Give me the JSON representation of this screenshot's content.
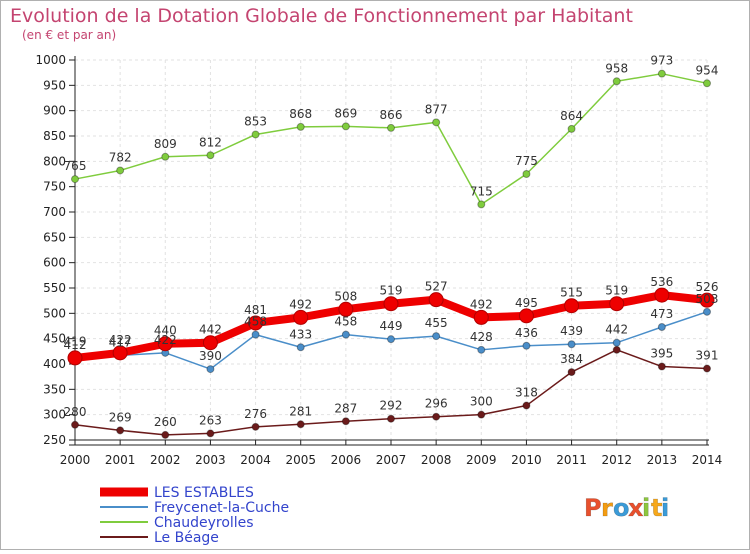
{
  "chart_data": {
    "type": "line",
    "title": "Evolution de la Dotation Globale de Fonctionnement par Habitant",
    "subtitle": "(en € et par an)",
    "x": [
      "2000",
      "2001",
      "2002",
      "2003",
      "2004",
      "2005",
      "2006",
      "2007",
      "2008",
      "2009",
      "2010",
      "2011",
      "2012",
      "2013",
      "2014"
    ],
    "yticks": [
      250,
      300,
      350,
      400,
      450,
      500,
      550,
      600,
      650,
      700,
      750,
      800,
      850,
      900,
      950,
      1000
    ],
    "ylim": [
      250,
      1000
    ],
    "grid": true,
    "legend_position": "bottom-left",
    "series": [
      {
        "name": "LES ESTABLES",
        "color": "#ee0000",
        "values": [
          412,
          422,
          440,
          442,
          481,
          492,
          508,
          519,
          527,
          492,
          495,
          515,
          519,
          536,
          526
        ],
        "labels": [
          "412",
          "422",
          "440",
          "442",
          "481",
          "492",
          "508",
          "519",
          "527",
          "492",
          "495",
          "515",
          "519",
          "536",
          "526"
        ]
      },
      {
        "name": "Freycenet-la-Cuche",
        "color": "#4a8ec9",
        "values": [
          419,
          417,
          422,
          390,
          458,
          433,
          458,
          449,
          455,
          428,
          436,
          439,
          442,
          473,
          503
        ],
        "labels": [
          "419",
          "417",
          "422",
          "390",
          "458",
          "433",
          "458",
          "449",
          "455",
          "428",
          "436",
          "439",
          "442",
          "473",
          "503"
        ]
      },
      {
        "name": "Chaudeyrolles",
        "color": "#7fcc3d",
        "values": [
          765,
          782,
          809,
          812,
          853,
          868,
          869,
          866,
          877,
          715,
          775,
          864,
          958,
          973,
          954
        ],
        "labels": [
          "765",
          "782",
          "809",
          "812",
          "853",
          "868",
          "869",
          "866",
          "877",
          "715",
          "775",
          "864",
          "958",
          "973",
          "954"
        ]
      },
      {
        "name": "Le Béage",
        "color": "#6b1b1b",
        "values": [
          280,
          269,
          260,
          263,
          276,
          281,
          287,
          292,
          296,
          300,
          318,
          384,
          428,
          395,
          391
        ],
        "labels": [
          "280",
          "269",
          "260",
          "263",
          "276",
          "281",
          "287",
          "292",
          "296",
          "300",
          "318",
          "384",
          "",
          "395",
          "391"
        ]
      }
    ]
  },
  "brand": {
    "name": "Proxiti",
    "letters": [
      "P",
      "r",
      "o",
      "x",
      "i",
      "t",
      "i"
    ],
    "colors": [
      "#e8502d",
      "#f39c12",
      "#3b9bd8",
      "#e8502d",
      "#8dc63f",
      "#f7a81b",
      "#3b9bd8"
    ]
  },
  "colors": {
    "title": "#c44470",
    "legend_text": "#3344cc",
    "grid": "#e2e2e2",
    "axis": "#222222",
    "border": "#b0b0b0"
  }
}
